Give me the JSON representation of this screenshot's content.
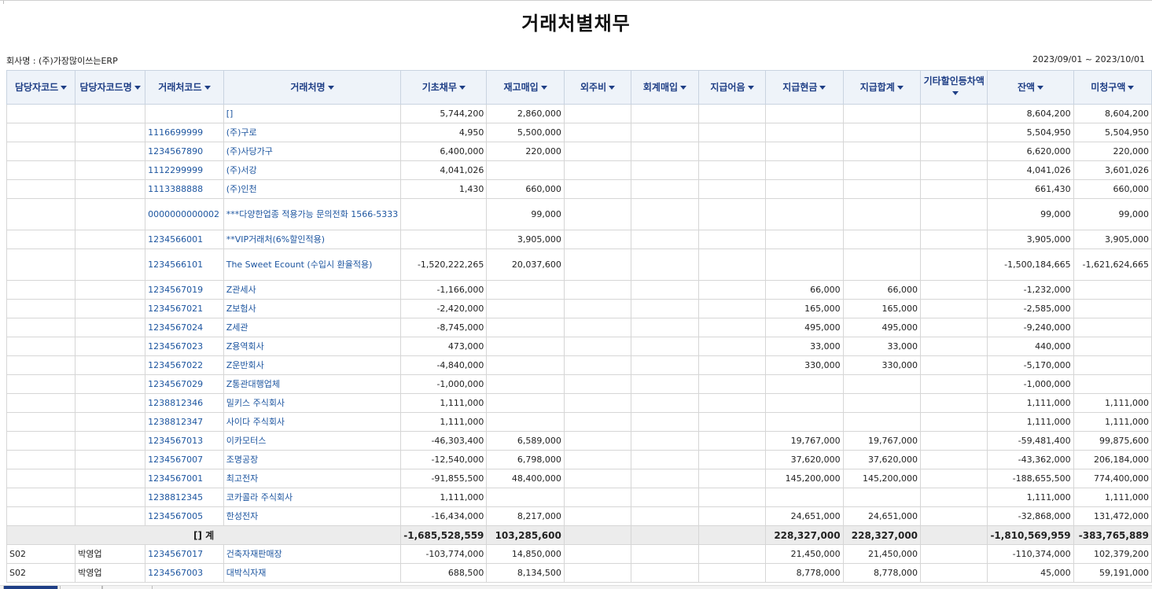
{
  "report": {
    "title": "거래처별채무",
    "company": "회사명 : (주)가장많이쓰는ERP",
    "period": "2023/09/01 ~ 2023/10/01"
  },
  "columns": [
    "담당자코드",
    "담당자코드명",
    "거래처코드",
    "거래처명",
    "기초채무",
    "재고매입",
    "외주비",
    "회계매입",
    "지급어음",
    "지급현금",
    "지급합계",
    "기타할인등차액",
    "잔액",
    "미청구액"
  ],
  "rows": [
    [
      "",
      "",
      "",
      "[]",
      "5,744,200",
      "2,860,000",
      "",
      "",
      "",
      "",
      "",
      "",
      "8,604,200",
      "8,604,200"
    ],
    [
      "",
      "",
      "1116699999",
      "(주)구로",
      "4,950",
      "5,500,000",
      "",
      "",
      "",
      "",
      "",
      "",
      "5,504,950",
      "5,504,950"
    ],
    [
      "",
      "",
      "1234567890",
      "(주)사당가구",
      "6,400,000",
      "220,000",
      "",
      "",
      "",
      "",
      "",
      "",
      "6,620,000",
      "220,000"
    ],
    [
      "",
      "",
      "1112299999",
      "(주)서강",
      "4,041,026",
      "",
      "",
      "",
      "",
      "",
      "",
      "",
      "4,041,026",
      "3,601,026"
    ],
    [
      "",
      "",
      "1113388888",
      "(주)인천",
      "1,430",
      "660,000",
      "",
      "",
      "",
      "",
      "",
      "",
      "661,430",
      "660,000"
    ],
    [
      "",
      "",
      "0000000000002",
      "***다양한업종 적용가능 문의전화 1566-5333",
      "",
      "99,000",
      "",
      "",
      "",
      "",
      "",
      "",
      "99,000",
      "99,000"
    ],
    [
      "",
      "",
      "1234566001",
      "**VIP거래처(6%할인적용)",
      "",
      "3,905,000",
      "",
      "",
      "",
      "",
      "",
      "",
      "3,905,000",
      "3,905,000"
    ],
    [
      "",
      "",
      "1234566101",
      "The Sweet Ecount (수입시 환율적용)",
      "-1,520,222,265",
      "20,037,600",
      "",
      "",
      "",
      "",
      "",
      "",
      "-1,500,184,665",
      "-1,621,624,665"
    ],
    [
      "",
      "",
      "1234567019",
      "Z관세사",
      "-1,166,000",
      "",
      "",
      "",
      "",
      "66,000",
      "66,000",
      "",
      "-1,232,000",
      ""
    ],
    [
      "",
      "",
      "1234567021",
      "Z보험사",
      "-2,420,000",
      "",
      "",
      "",
      "",
      "165,000",
      "165,000",
      "",
      "-2,585,000",
      ""
    ],
    [
      "",
      "",
      "1234567024",
      "Z세관",
      "-8,745,000",
      "",
      "",
      "",
      "",
      "495,000",
      "495,000",
      "",
      "-9,240,000",
      ""
    ],
    [
      "",
      "",
      "1234567023",
      "Z용역회사",
      "473,000",
      "",
      "",
      "",
      "",
      "33,000",
      "33,000",
      "",
      "440,000",
      ""
    ],
    [
      "",
      "",
      "1234567022",
      "Z운반회사",
      "-4,840,000",
      "",
      "",
      "",
      "",
      "330,000",
      "330,000",
      "",
      "-5,170,000",
      ""
    ],
    [
      "",
      "",
      "1234567029",
      "Z통관대행업체",
      "-1,000,000",
      "",
      "",
      "",
      "",
      "",
      "",
      "",
      "-1,000,000",
      ""
    ],
    [
      "",
      "",
      "1238812346",
      "밀키스 주식회사",
      "1,111,000",
      "",
      "",
      "",
      "",
      "",
      "",
      "",
      "1,111,000",
      "1,111,000"
    ],
    [
      "",
      "",
      "1238812347",
      "사이다 주식회사",
      "1,111,000",
      "",
      "",
      "",
      "",
      "",
      "",
      "",
      "1,111,000",
      "1,111,000"
    ],
    [
      "",
      "",
      "1234567013",
      "이카모터스",
      "-46,303,400",
      "6,589,000",
      "",
      "",
      "",
      "19,767,000",
      "19,767,000",
      "",
      "-59,481,400",
      "99,875,600"
    ],
    [
      "",
      "",
      "1234567007",
      "조명공장",
      "-12,540,000",
      "6,798,000",
      "",
      "",
      "",
      "37,620,000",
      "37,620,000",
      "",
      "-43,362,000",
      "206,184,000"
    ],
    [
      "",
      "",
      "1234567001",
      "최고전자",
      "-91,855,500",
      "48,400,000",
      "",
      "",
      "",
      "145,200,000",
      "145,200,000",
      "",
      "-188,655,500",
      "774,400,000"
    ],
    [
      "",
      "",
      "1238812345",
      "코카콜라 주식회사",
      "1,111,000",
      "",
      "",
      "",
      "",
      "",
      "",
      "",
      "1,111,000",
      "1,111,000"
    ],
    [
      "",
      "",
      "1234567005",
      "한성전자",
      "-16,434,000",
      "8,217,000",
      "",
      "",
      "",
      "24,651,000",
      "24,651,000",
      "",
      "-32,868,000",
      "131,472,000"
    ]
  ],
  "subtotal": {
    "label": "[] 계",
    "values": [
      "-1,685,528,559",
      "103,285,600",
      "",
      "",
      "",
      "228,327,000",
      "228,327,000",
      "",
      "-1,810,569,959",
      "-383,765,889"
    ]
  },
  "rows_after": [
    [
      "S02",
      "박영업",
      "1234567017",
      "건축자재판매장",
      "-103,774,000",
      "14,850,000",
      "",
      "",
      "",
      "21,450,000",
      "21,450,000",
      "",
      "-110,374,000",
      "102,379,200"
    ],
    [
      "S02",
      "박영업",
      "1234567003",
      "대박식자재",
      "688,500",
      "8,134,500",
      "",
      "",
      "",
      "8,778,000",
      "8,778,000",
      "",
      "45,000",
      "59,191,000"
    ]
  ]
}
